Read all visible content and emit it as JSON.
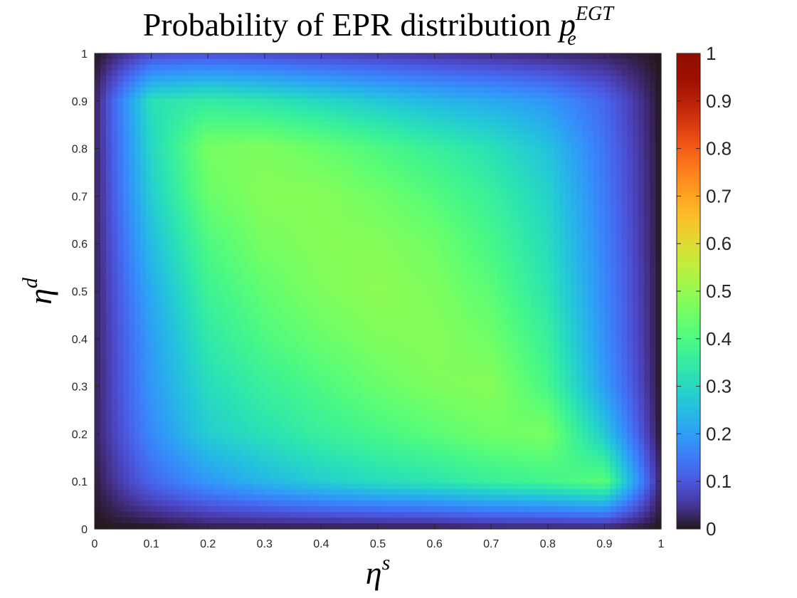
{
  "chart_data": {
    "type": "heatmap",
    "title": {
      "main": "Probability of EPR distribution ",
      "symbol": "p",
      "subscript": "e",
      "superscript": "EGT"
    },
    "xlabel": {
      "symbol": "η",
      "superscript": "s"
    },
    "ylabel": {
      "symbol": "η",
      "superscript": "d"
    },
    "xlim": [
      0,
      1
    ],
    "ylim": [
      0,
      1
    ],
    "xticks": [
      "0",
      "0.1",
      "0.2",
      "0.3",
      "0.4",
      "0.5",
      "0.6",
      "0.7",
      "0.8",
      "0.9",
      "1"
    ],
    "yticks": [
      "0",
      "0.1",
      "0.2",
      "0.3",
      "0.4",
      "0.5",
      "0.6",
      "0.7",
      "0.8",
      "0.9",
      "1"
    ],
    "colorbar": {
      "range": [
        0,
        1
      ],
      "ticks": [
        "0",
        "0.1",
        "0.2",
        "0.3",
        "0.4",
        "0.5",
        "0.6",
        "0.7",
        "0.8",
        "0.9",
        "1"
      ],
      "colormap": "turbo"
    },
    "x": [
      0,
      0.1,
      0.2,
      0.3,
      0.4,
      0.5,
      0.6,
      0.7,
      0.8,
      0.9,
      1
    ],
    "y": [
      1,
      0.9,
      0.8,
      0.7,
      0.6,
      0.5,
      0.4,
      0.3,
      0.2,
      0.1,
      0
    ],
    "z": [
      [
        0.0,
        0.08,
        0.09,
        0.08,
        0.07,
        0.06,
        0.05,
        0.04,
        0.03,
        0.02,
        0.0
      ],
      [
        0.02,
        0.32,
        0.35,
        0.33,
        0.3,
        0.27,
        0.24,
        0.22,
        0.19,
        0.12,
        0.0
      ],
      [
        0.02,
        0.3,
        0.46,
        0.47,
        0.44,
        0.4,
        0.36,
        0.32,
        0.26,
        0.14,
        0.0
      ],
      [
        0.02,
        0.28,
        0.44,
        0.48,
        0.48,
        0.45,
        0.41,
        0.36,
        0.29,
        0.15,
        0.0
      ],
      [
        0.02,
        0.25,
        0.4,
        0.46,
        0.48,
        0.48,
        0.45,
        0.39,
        0.31,
        0.16,
        0.0
      ],
      [
        0.02,
        0.22,
        0.37,
        0.43,
        0.47,
        0.49,
        0.47,
        0.42,
        0.33,
        0.17,
        0.0
      ],
      [
        0.02,
        0.2,
        0.34,
        0.4,
        0.44,
        0.47,
        0.48,
        0.45,
        0.36,
        0.18,
        0.0
      ],
      [
        0.02,
        0.19,
        0.31,
        0.36,
        0.4,
        0.44,
        0.47,
        0.48,
        0.39,
        0.2,
        0.0
      ],
      [
        0.02,
        0.17,
        0.28,
        0.32,
        0.36,
        0.39,
        0.42,
        0.45,
        0.46,
        0.27,
        0.0
      ],
      [
        0.01,
        0.12,
        0.19,
        0.24,
        0.28,
        0.31,
        0.33,
        0.36,
        0.38,
        0.42,
        0.02
      ],
      [
        0.0,
        0.0,
        0.01,
        0.01,
        0.01,
        0.01,
        0.01,
        0.02,
        0.02,
        0.02,
        0.0
      ]
    ]
  }
}
